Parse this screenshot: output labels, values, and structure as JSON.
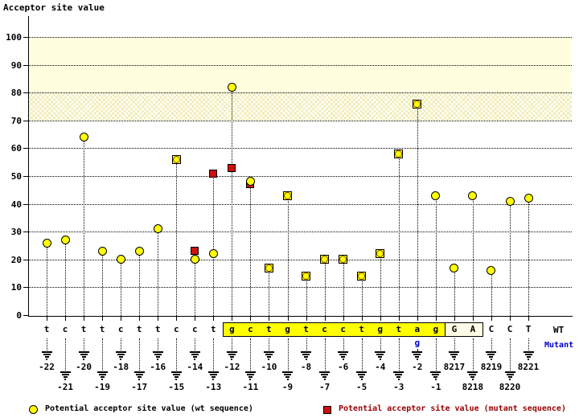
{
  "title": "Acceptor site value",
  "axis": {
    "y_ticks": [
      0,
      10,
      20,
      30,
      40,
      50,
      60,
      70,
      80,
      90,
      100
    ]
  },
  "row_labels": {
    "wt": "WT",
    "mutant": "Mutant"
  },
  "legend": {
    "wt_label": "Potential acceptor site value (wt sequence)",
    "mutant_label": "Potential acceptor site value (mutant sequence)"
  },
  "colors": {
    "wt_marker": "#ffff00",
    "mutant_marker": "#cc1111",
    "mutant_legend_text": "#990000",
    "mutant_blue_text": "#0000cc",
    "threshold_band": "#ffffdf",
    "acceptor_highlight": "#ffff00",
    "exon_box": "#fffde8"
  },
  "chart_data": {
    "type": "scatter",
    "ylabel": "Acceptor site value",
    "ylim": [
      0,
      100
    ],
    "grid": "horizontal-dotted",
    "legend_position": "bottom",
    "threshold_bands": [
      {
        "from": 80,
        "to": 100,
        "style": "solid"
      },
      {
        "from": 70,
        "to": 80,
        "style": "hatched"
      }
    ],
    "mutation": {
      "pos": "-2",
      "wt_base": "a",
      "mut_base": "g"
    },
    "columns": [
      {
        "pos": "-22",
        "base": "t",
        "wt": 26,
        "mut": null,
        "region": "intron"
      },
      {
        "pos": "-21",
        "base": "c",
        "wt": 27,
        "mut": null,
        "region": "intron"
      },
      {
        "pos": "-20",
        "base": "t",
        "wt": 64,
        "mut": null,
        "region": "intron"
      },
      {
        "pos": "-19",
        "base": "t",
        "wt": 23,
        "mut": null,
        "region": "intron"
      },
      {
        "pos": "-18",
        "base": "c",
        "wt": 20,
        "mut": null,
        "region": "intron"
      },
      {
        "pos": "-17",
        "base": "t",
        "wt": 23,
        "mut": null,
        "region": "intron"
      },
      {
        "pos": "-16",
        "base": "t",
        "wt": 31,
        "mut": null,
        "region": "intron"
      },
      {
        "pos": "-15",
        "base": "c",
        "wt": 56,
        "mut": 56,
        "region": "intron"
      },
      {
        "pos": "-14",
        "base": "c",
        "wt": 20,
        "mut": 23,
        "region": "intron"
      },
      {
        "pos": "-13",
        "base": "t",
        "wt": 22,
        "mut": 51,
        "region": "intron"
      },
      {
        "pos": "-12",
        "base": "g",
        "wt": 82,
        "mut": 53,
        "region": "acceptor"
      },
      {
        "pos": "-11",
        "base": "c",
        "wt": 48,
        "mut": 47,
        "region": "acceptor"
      },
      {
        "pos": "-10",
        "base": "t",
        "wt": 17,
        "mut": 17,
        "region": "acceptor"
      },
      {
        "pos": "-9",
        "base": "g",
        "wt": 43,
        "mut": 43,
        "region": "acceptor"
      },
      {
        "pos": "-8",
        "base": "t",
        "wt": 14,
        "mut": 14,
        "region": "acceptor"
      },
      {
        "pos": "-7",
        "base": "c",
        "wt": 20,
        "mut": 20,
        "region": "acceptor"
      },
      {
        "pos": "-6",
        "base": "c",
        "wt": 20,
        "mut": 20,
        "region": "acceptor"
      },
      {
        "pos": "-5",
        "base": "t",
        "wt": 14,
        "mut": 14,
        "region": "acceptor"
      },
      {
        "pos": "-4",
        "base": "g",
        "wt": 22,
        "mut": 22,
        "region": "acceptor"
      },
      {
        "pos": "-3",
        "base": "t",
        "wt": 58,
        "mut": 58,
        "region": "acceptor"
      },
      {
        "pos": "-2",
        "base": "a",
        "wt": 76,
        "mut": 76,
        "region": "acceptor"
      },
      {
        "pos": "-1",
        "base": "g",
        "wt": 43,
        "mut": null,
        "region": "acceptor"
      },
      {
        "pos": "8217",
        "base": "G",
        "wt": 17,
        "mut": null,
        "region": "exon-box"
      },
      {
        "pos": "8218",
        "base": "A",
        "wt": 43,
        "mut": null,
        "region": "exon-box"
      },
      {
        "pos": "8219",
        "base": "C",
        "wt": 16,
        "mut": null,
        "region": "exon"
      },
      {
        "pos": "8220",
        "base": "C",
        "wt": 41,
        "mut": null,
        "region": "exon"
      },
      {
        "pos": "8221",
        "base": "T",
        "wt": 42,
        "mut": null,
        "region": "exon"
      }
    ]
  }
}
